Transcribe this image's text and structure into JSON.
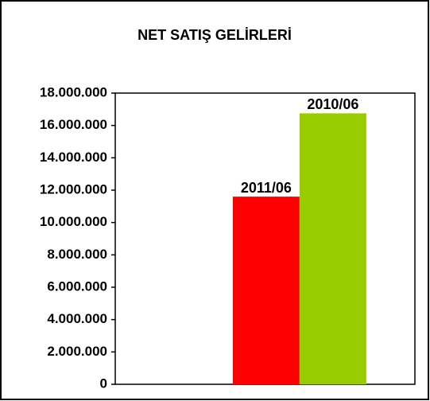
{
  "chart_data": {
    "type": "bar",
    "title": "NET SATIŞ GELİRLERİ",
    "categories": [
      null
    ],
    "series": [
      {
        "name": "2011/06",
        "color": "#ff0000",
        "values": [
          11600000
        ]
      },
      {
        "name": "2010/06",
        "color": "#99cc00",
        "values": [
          16750000
        ]
      }
    ],
    "ylim": [
      0,
      18000000
    ],
    "yticks": [
      0,
      {
        "value": 2000000,
        "label": "2.000.000"
      },
      {
        "value": 4000000,
        "label": "4.000.000"
      },
      {
        "value": 6000000,
        "label": "6.000.000"
      },
      {
        "value": 8000000,
        "label": "8.000.000"
      },
      {
        "value": 10000000,
        "label": "10.000.000"
      },
      {
        "value": 12000000,
        "label": "12.000.000"
      },
      {
        "value": 14000000,
        "label": "14.000.000"
      },
      {
        "value": 16000000,
        "label": "16.000.000"
      },
      {
        "value": 18000000,
        "label": "18.000.000"
      }
    ],
    "grid": false
  }
}
